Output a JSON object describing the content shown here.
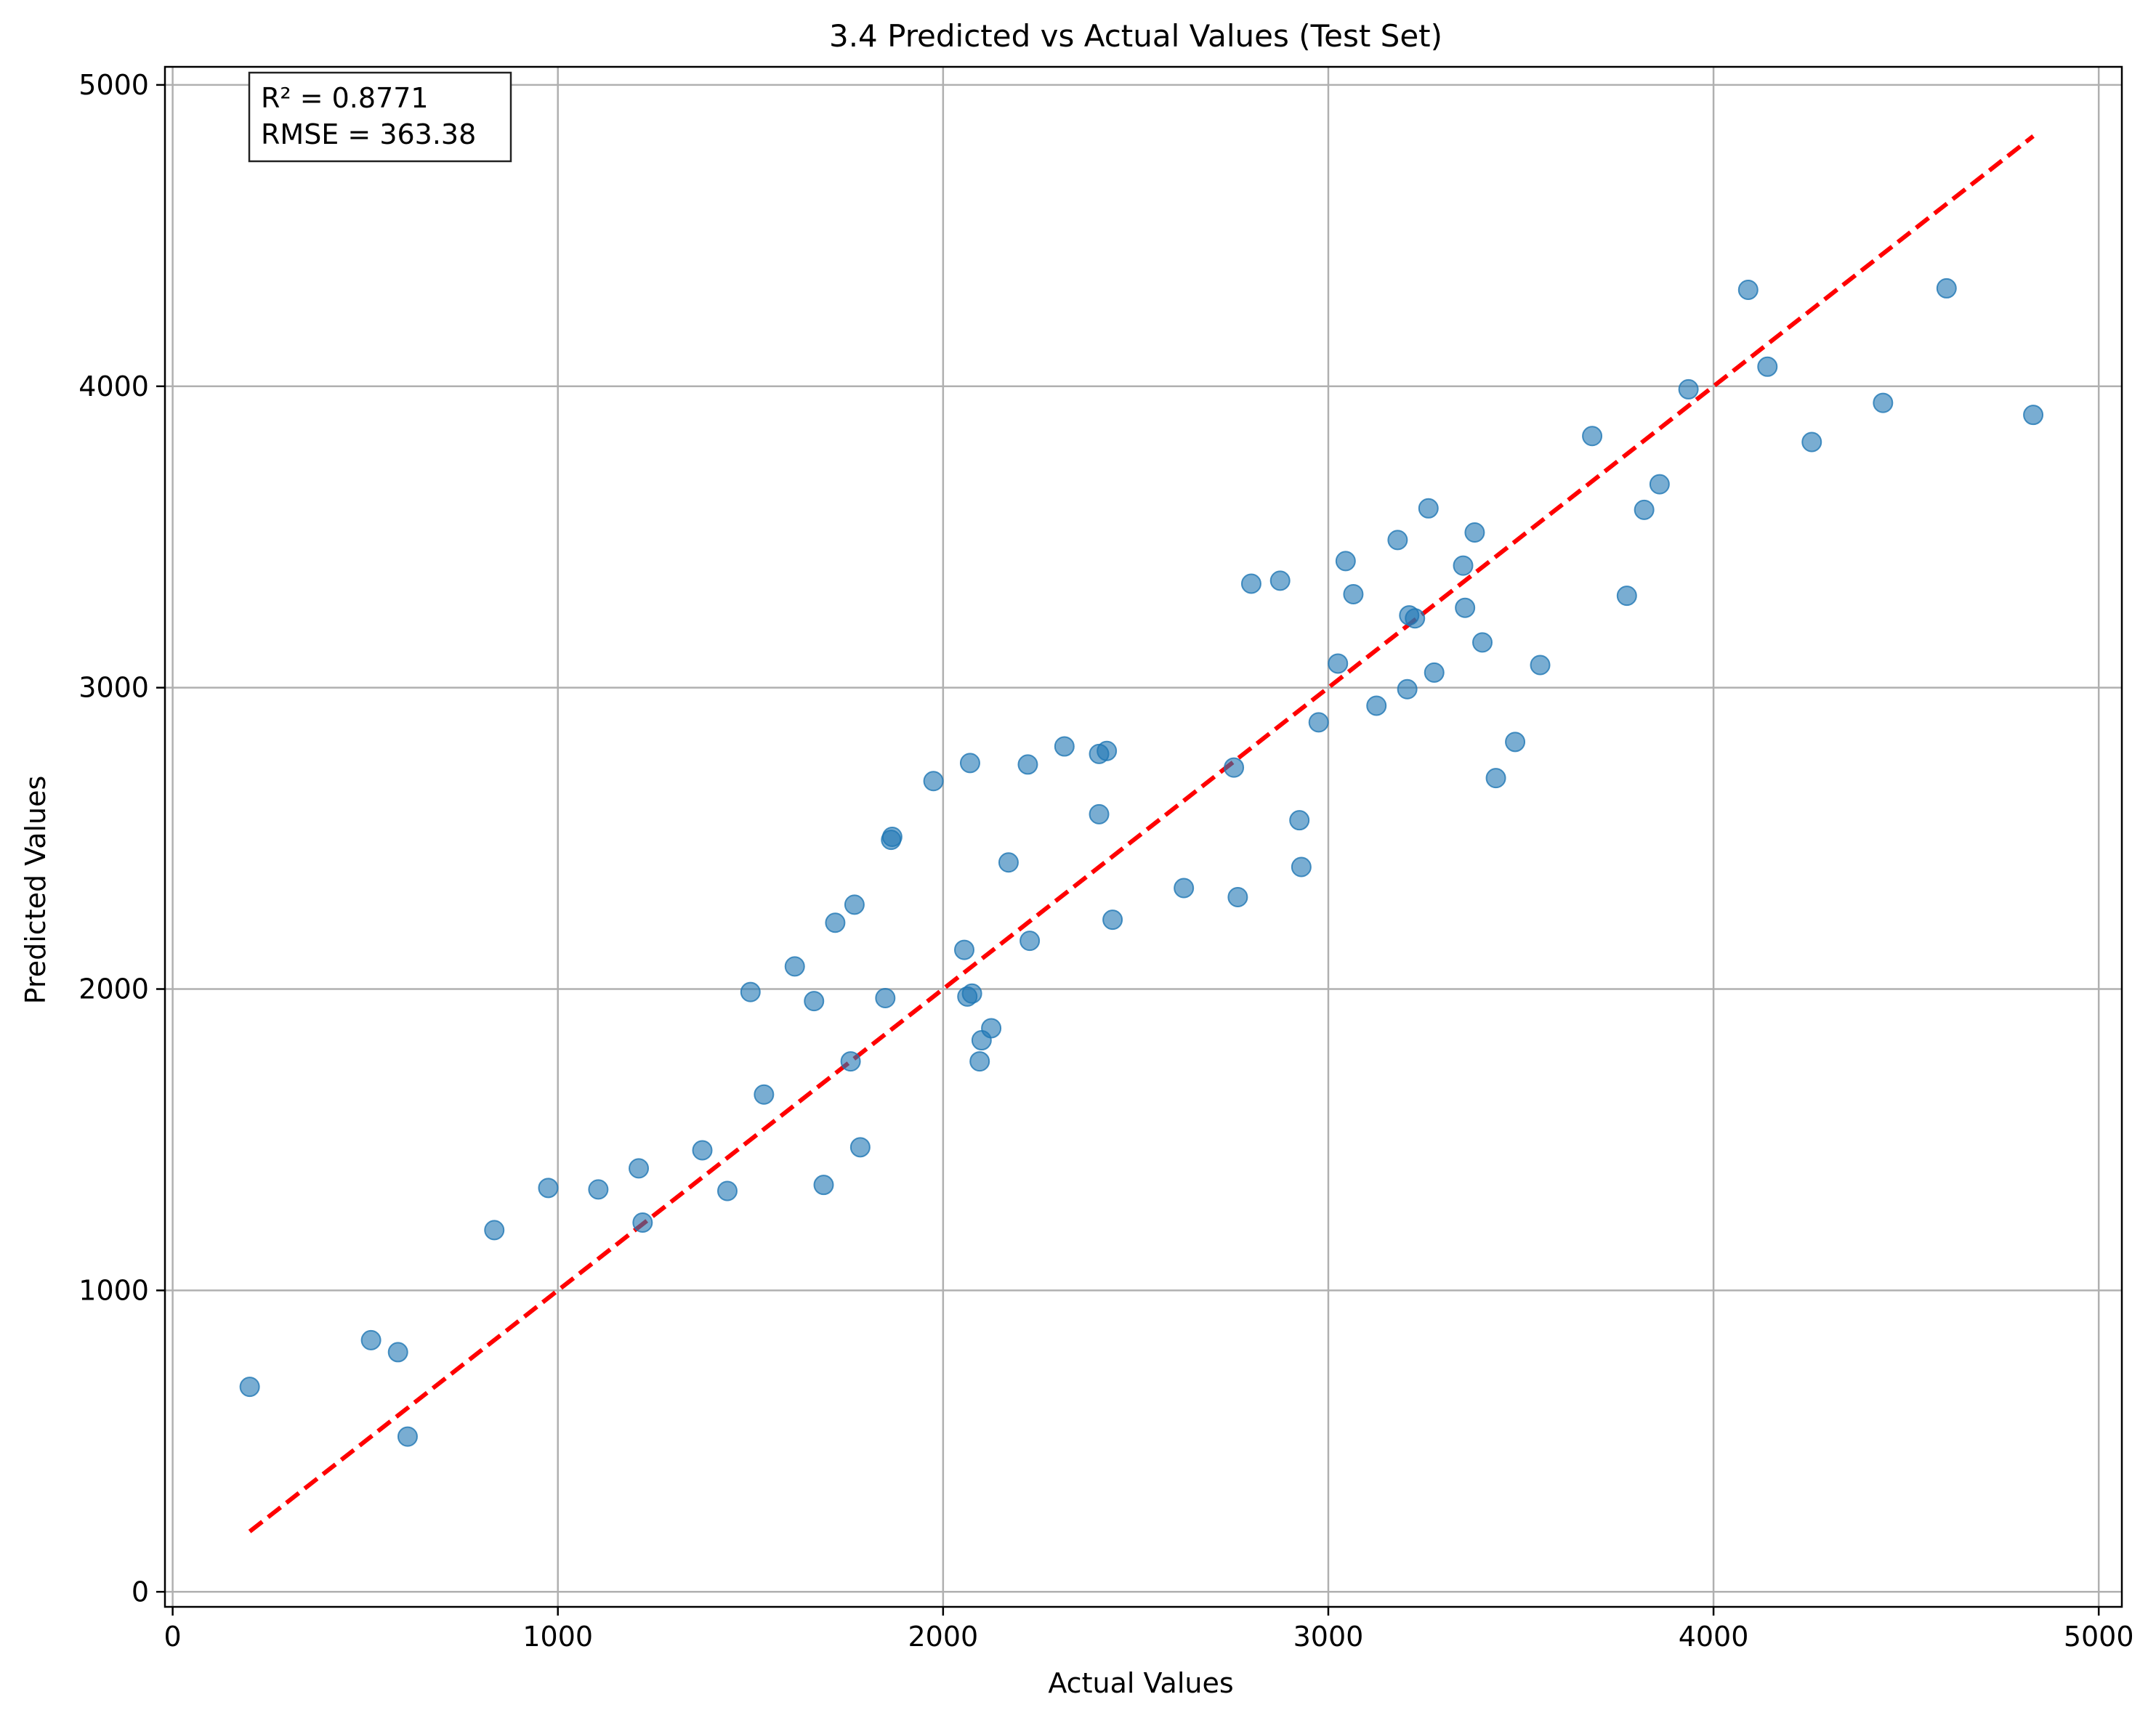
{
  "chart_data": {
    "type": "scatter",
    "title": "3.4 Predicted vs Actual Values (Test Set)",
    "xlabel": "Actual Values",
    "ylabel": "Predicted Values",
    "xlim": [
      -20,
      5060
    ],
    "ylim": [
      -50,
      5060
    ],
    "xticks": [
      0,
      1000,
      2000,
      3000,
      4000,
      5000
    ],
    "yticks": [
      0,
      1000,
      2000,
      3000,
      4000,
      5000
    ],
    "grid": true,
    "annotation": {
      "r2_text": "R² = 0.8771",
      "rmse_text": "RMSE = 363.38"
    },
    "reference_line": {
      "x": [
        200,
        4830
      ],
      "y": [
        200,
        4830
      ],
      "color": "#ff0000",
      "style": "dashed"
    },
    "point_color": "#1f77b4",
    "points": [
      [
        200,
        680
      ],
      [
        515,
        835
      ],
      [
        585,
        795
      ],
      [
        610,
        515
      ],
      [
        835,
        1200
      ],
      [
        975,
        1340
      ],
      [
        1105,
        1335
      ],
      [
        1210,
        1405
      ],
      [
        1220,
        1225
      ],
      [
        1375,
        1465
      ],
      [
        1440,
        1330
      ],
      [
        1500,
        1990
      ],
      [
        1535,
        1650
      ],
      [
        1615,
        2075
      ],
      [
        1665,
        1960
      ],
      [
        1690,
        1350
      ],
      [
        1720,
        2220
      ],
      [
        1760,
        1760
      ],
      [
        1770,
        2280
      ],
      [
        1785,
        1475
      ],
      [
        1850,
        1970
      ],
      [
        1865,
        2495
      ],
      [
        1868,
        2505
      ],
      [
        1975,
        2690
      ],
      [
        2055,
        2130
      ],
      [
        2063,
        1975
      ],
      [
        2070,
        2750
      ],
      [
        2075,
        1985
      ],
      [
        2095,
        1760
      ],
      [
        2100,
        1830
      ],
      [
        2125,
        1870
      ],
      [
        2170,
        2420
      ],
      [
        2220,
        2745
      ],
      [
        2225,
        2160
      ],
      [
        2315,
        2805
      ],
      [
        2405,
        2780
      ],
      [
        2405,
        2580
      ],
      [
        2425,
        2790
      ],
      [
        2440,
        2230
      ],
      [
        2625,
        2335
      ],
      [
        2755,
        2735
      ],
      [
        2765,
        2305
      ],
      [
        2800,
        3345
      ],
      [
        2875,
        3355
      ],
      [
        2925,
        2560
      ],
      [
        2930,
        2405
      ],
      [
        2975,
        2885
      ],
      [
        3025,
        3080
      ],
      [
        3045,
        3420
      ],
      [
        3065,
        3310
      ],
      [
        3125,
        2940
      ],
      [
        3180,
        3490
      ],
      [
        3205,
        2995
      ],
      [
        3210,
        3240
      ],
      [
        3225,
        3230
      ],
      [
        3260,
        3595
      ],
      [
        3275,
        3050
      ],
      [
        3350,
        3405
      ],
      [
        3355,
        3265
      ],
      [
        3380,
        3515
      ],
      [
        3400,
        3150
      ],
      [
        3435,
        2700
      ],
      [
        3485,
        2820
      ],
      [
        3550,
        3075
      ],
      [
        3685,
        3835
      ],
      [
        3775,
        3305
      ],
      [
        3820,
        3590
      ],
      [
        3860,
        3675
      ],
      [
        3935,
        3990
      ],
      [
        4090,
        4320
      ],
      [
        4140,
        4065
      ],
      [
        4255,
        3815
      ],
      [
        4440,
        3945
      ],
      [
        4605,
        4325
      ],
      [
        4830,
        3905
      ]
    ]
  }
}
